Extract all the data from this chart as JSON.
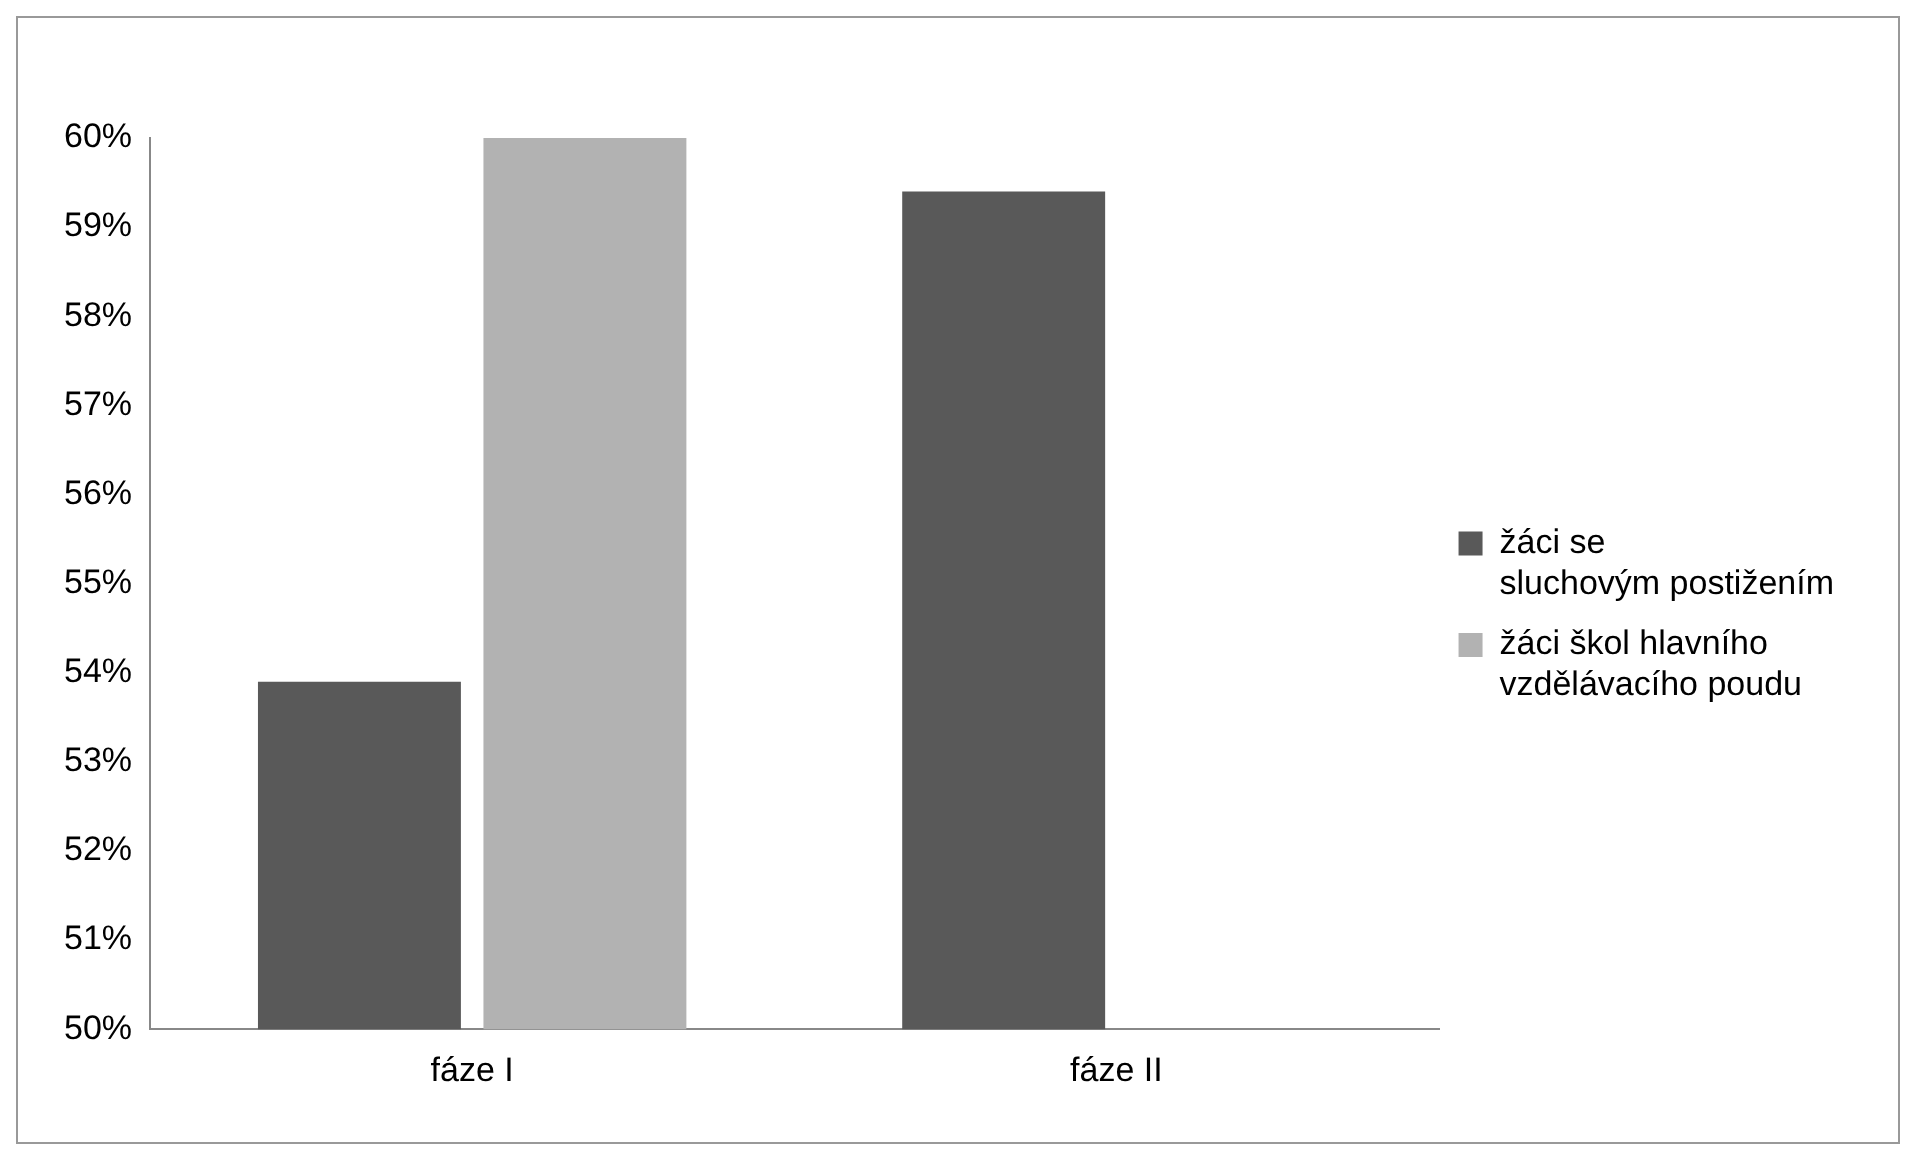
{
  "chart_data": {
    "type": "bar",
    "categories": [
      "fáze I",
      "fáze II"
    ],
    "series": [
      {
        "name": "žáci se sluchovým postižením",
        "color": "#595959",
        "values": [
          53.9,
          59.4
        ]
      },
      {
        "name": "žáci škol hlavního vzdělávacího poudu",
        "color": "#b2b2b2",
        "values": [
          60,
          null
        ]
      }
    ],
    "ylim": [
      50,
      60
    ],
    "yticks": [
      {
        "value": 50,
        "label": "50%"
      },
      {
        "value": 51,
        "label": "51%"
      },
      {
        "value": 52,
        "label": "52%"
      },
      {
        "value": 53,
        "label": "53%"
      },
      {
        "value": 54,
        "label": "54%"
      },
      {
        "value": 55,
        "label": "55%"
      },
      {
        "value": 56,
        "label": "56%"
      },
      {
        "value": 57,
        "label": "57%"
      },
      {
        "value": 58,
        "label": "58%"
      },
      {
        "value": 59,
        "label": "59%"
      },
      {
        "value": 60,
        "label": "60%"
      }
    ],
    "grid": false,
    "legend": "right"
  }
}
